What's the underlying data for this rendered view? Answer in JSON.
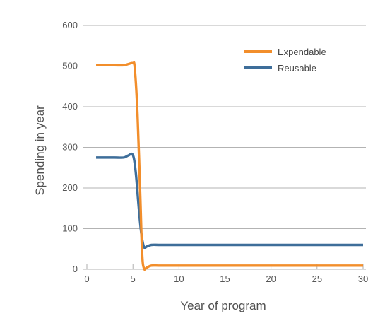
{
  "chart_data": {
    "type": "line",
    "title": "",
    "xlabel": "Year of program",
    "ylabel": "Spending in year",
    "xlim": [
      0,
      30
    ],
    "ylim": [
      0,
      600
    ],
    "x_ticks": [
      "0",
      "5",
      "10",
      "15",
      "20",
      "25",
      "30"
    ],
    "y_ticks": [
      "0",
      "100",
      "200",
      "300",
      "400",
      "500",
      "600"
    ],
    "grid": "horizontal",
    "legend_position": "top-right",
    "series": [
      {
        "name": "Expendable",
        "color": "#F28E2B",
        "points": [
          [
            1,
            502
          ],
          [
            2,
            502
          ],
          [
            3,
            502
          ],
          [
            4,
            502
          ],
          [
            4.5,
            505
          ],
          [
            5,
            507
          ],
          [
            5.2,
            495
          ],
          [
            5.5,
            380
          ],
          [
            5.8,
            180
          ],
          [
            6.0,
            40
          ],
          [
            6.2,
            2
          ],
          [
            6.5,
            4
          ],
          [
            7,
            9
          ],
          [
            8,
            9
          ],
          [
            10,
            9
          ],
          [
            15,
            9
          ],
          [
            20,
            9
          ],
          [
            25,
            9
          ],
          [
            30,
            9
          ]
        ]
      },
      {
        "name": "Reusable",
        "color": "#3E6E9A",
        "points": [
          [
            1,
            275
          ],
          [
            2,
            275
          ],
          [
            3,
            275
          ],
          [
            4,
            275
          ],
          [
            4.5,
            280
          ],
          [
            5,
            281
          ],
          [
            5.3,
            240
          ],
          [
            5.6,
            160
          ],
          [
            5.9,
            90
          ],
          [
            6.2,
            55
          ],
          [
            6.5,
            56
          ],
          [
            7,
            60
          ],
          [
            8,
            60
          ],
          [
            10,
            60
          ],
          [
            15,
            60
          ],
          [
            20,
            60
          ],
          [
            25,
            60
          ],
          [
            30,
            60
          ]
        ]
      }
    ]
  }
}
